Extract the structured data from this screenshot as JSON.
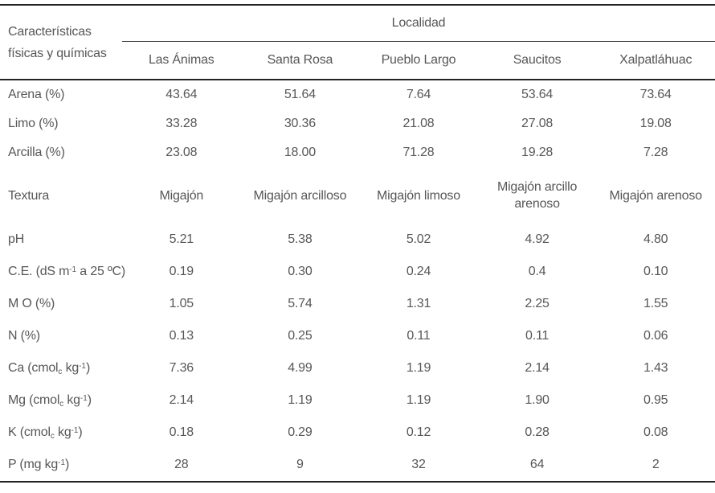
{
  "colors": {
    "text": "#56575a",
    "rule_heavy": "#232323",
    "rule_light": "#3c3c3c",
    "background": "#ffffff"
  },
  "table": {
    "header": {
      "row_header": "Características físicas y químicas",
      "group_header": "Localidad",
      "localities": [
        "Las Ánimas",
        "Santa Rosa",
        "Pueblo Largo",
        "Saucitos",
        "Xalpatláhuac"
      ]
    },
    "rows": [
      {
        "label": "Arena (%)",
        "values": [
          "43.64",
          "51.64",
          "7.64",
          "53.64",
          "73.64"
        ]
      },
      {
        "label": "Limo (%)",
        "values": [
          "33.28",
          "30.36",
          "21.08",
          "27.08",
          "19.08"
        ]
      },
      {
        "label": "Arcilla (%)",
        "values": [
          "23.08",
          "18.00",
          "71.28",
          "19.28",
          "7.28"
        ]
      },
      {
        "label": "Textura",
        "values": [
          "Migajón",
          "Migajón arcilloso",
          "Migajón limoso",
          "Migajón arcillo arenoso",
          "Migajón arenoso"
        ]
      },
      {
        "label": "pH",
        "values": [
          "5.21",
          "5.38",
          "5.02",
          "4.92",
          "4.80"
        ]
      },
      {
        "label": [
          {
            "t": "C.E. (dS m"
          },
          {
            "t": "-1",
            "s": "sup"
          },
          {
            "t": " a 25 ºC)"
          }
        ],
        "values": [
          "0.19",
          "0.30",
          "0.24",
          "0.4",
          "0.10"
        ]
      },
      {
        "label": "M O (%)",
        "values": [
          "1.05",
          "5.74",
          "1.31",
          "2.25",
          "1.55"
        ]
      },
      {
        "label": "N (%)",
        "values": [
          "0.13",
          "0.25",
          "0.11",
          "0.11",
          "0.06"
        ]
      },
      {
        "label": [
          {
            "t": "Ca (cmol"
          },
          {
            "t": "c",
            "s": "sub"
          },
          {
            "t": " kg"
          },
          {
            "t": "-1",
            "s": "sup"
          },
          {
            "t": ")"
          }
        ],
        "values": [
          "7.36",
          "4.99",
          "1.19",
          "2.14",
          "1.43"
        ]
      },
      {
        "label": [
          {
            "t": "Mg (cmol"
          },
          {
            "t": "c",
            "s": "sub"
          },
          {
            "t": " kg"
          },
          {
            "t": "-1",
            "s": "sup"
          },
          {
            "t": ")"
          }
        ],
        "values": [
          "2.14",
          "1.19",
          "1.19",
          "1.90",
          "0.95"
        ]
      },
      {
        "label": [
          {
            "t": "K (cmol"
          },
          {
            "t": "c",
            "s": "sub"
          },
          {
            "t": " kg"
          },
          {
            "t": "-1",
            "s": "sup"
          },
          {
            "t": ")"
          }
        ],
        "values": [
          "0.18",
          "0.29",
          "0.12",
          "0.28",
          "0.08"
        ]
      },
      {
        "label": [
          {
            "t": "P (mg kg"
          },
          {
            "t": "-1",
            "s": "sup"
          },
          {
            "t": ")"
          }
        ],
        "values": [
          "28",
          "9",
          "32",
          "64",
          "2"
        ]
      }
    ]
  }
}
